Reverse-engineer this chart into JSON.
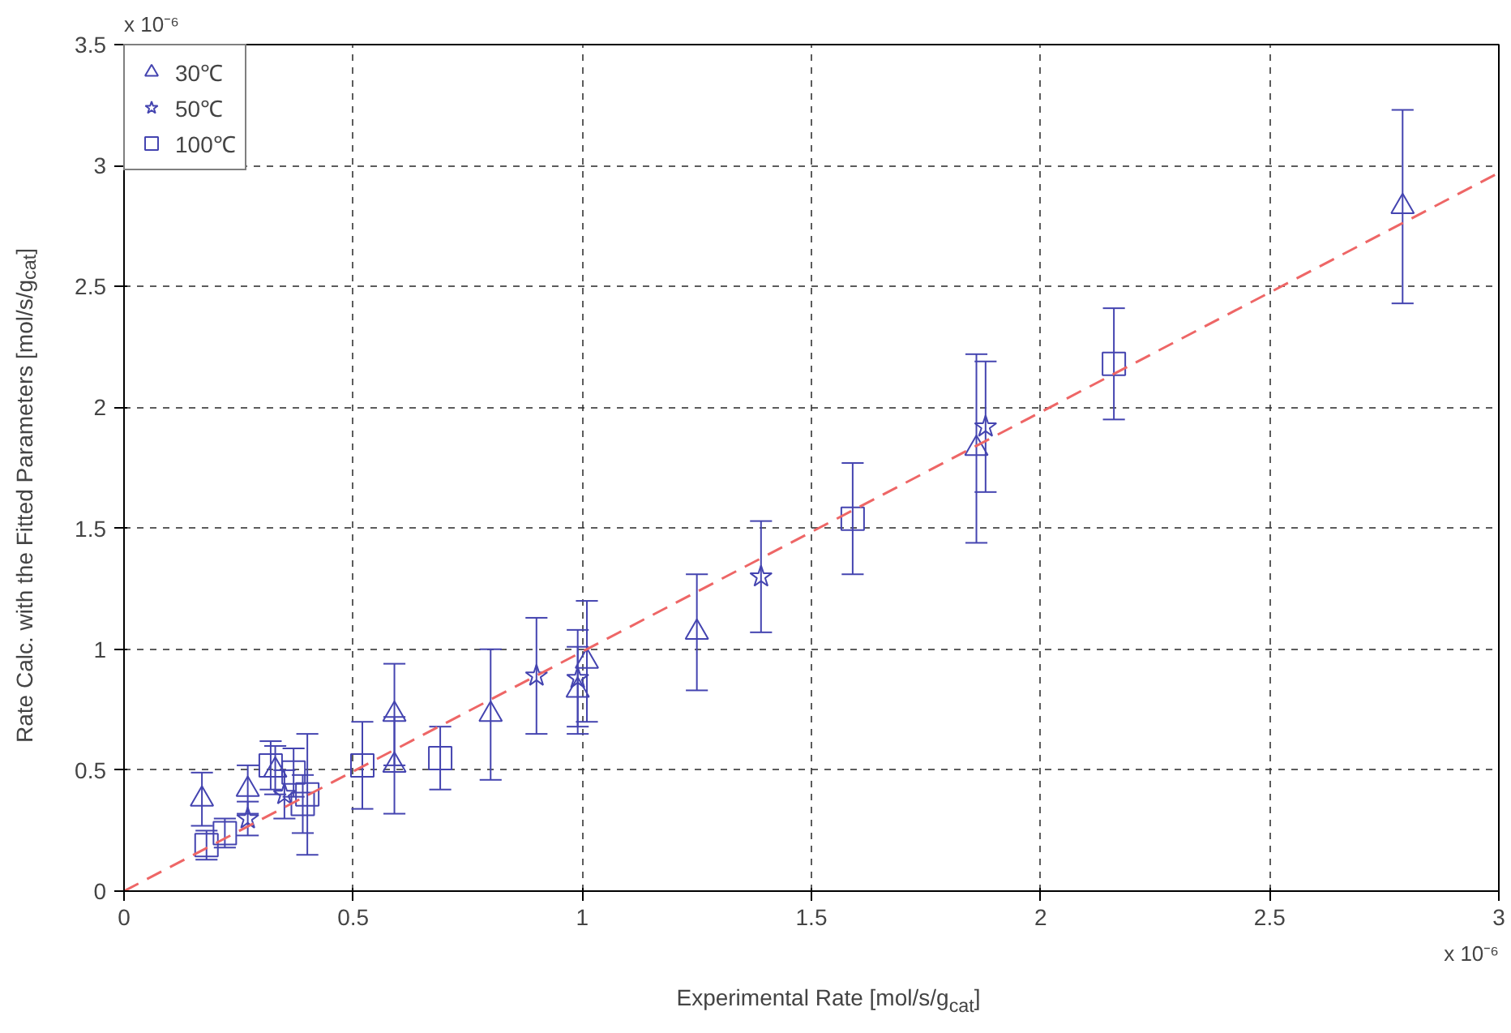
{
  "chart_data": {
    "type": "scatter",
    "xlabel": "Experimental Rate [mol/s/g$_{cat}$]",
    "ylabel": "Rate Calc. with the Fitted Parameters [mol/s/g$_{cat}$]",
    "annotations": [
      "x 10⁻⁶",
      "x 10⁻⁶"
    ],
    "xlim": [
      0,
      3
    ],
    "ylim": [
      0,
      3.5
    ],
    "xticks": [
      0,
      0.5,
      1,
      1.5,
      2,
      2.5,
      3
    ],
    "yticks": [
      0,
      0.5,
      1,
      1.5,
      2,
      2.5,
      3,
      3.5
    ],
    "grid": true,
    "legend": "top left",
    "series": [
      {
        "name": "30℃",
        "color": "#4444b0",
        "marker": "triangle",
        "x": [
          0.17,
          0.27,
          0.33,
          0.59,
          0.59,
          0.8,
          0.99,
          1.01,
          1.25,
          1.86,
          2.79
        ],
        "values": [
          0.38,
          0.42,
          0.5,
          0.73,
          0.52,
          0.73,
          0.83,
          0.95,
          1.07,
          1.83,
          2.83
        ],
        "errors": [
          0.11,
          0.1,
          0.1,
          0.21,
          0.2,
          0.27,
          0.18,
          0.25,
          0.24,
          0.39,
          0.4
        ]
      },
      {
        "name": "50℃",
        "color": "#4444b0",
        "marker": "star",
        "x": [
          0.27,
          0.35,
          0.9,
          0.99,
          1.39,
          1.88
        ],
        "values": [
          0.3,
          0.4,
          0.89,
          0.88,
          1.3,
          1.92
        ],
        "errors": [
          0.07,
          0.1,
          0.24,
          0.2,
          0.23,
          0.27
        ]
      },
      {
        "name": "100℃",
        "color": "#4444b0",
        "marker": "square",
        "x": [
          0.18,
          0.22,
          0.32,
          0.37,
          0.39,
          0.4,
          0.52,
          0.69,
          1.59,
          2.16
        ],
        "values": [
          0.19,
          0.24,
          0.52,
          0.49,
          0.36,
          0.4,
          0.52,
          0.55,
          1.54,
          2.18
        ],
        "errors": [
          0.06,
          0.06,
          0.1,
          0.1,
          0.12,
          0.25,
          0.18,
          0.13,
          0.23,
          0.23
        ]
      },
      {
        "type": "line",
        "color": "#ee6666",
        "line_style": "dashed",
        "x": [
          0,
          3
        ],
        "values": [
          0,
          2.97
        ]
      }
    ]
  }
}
